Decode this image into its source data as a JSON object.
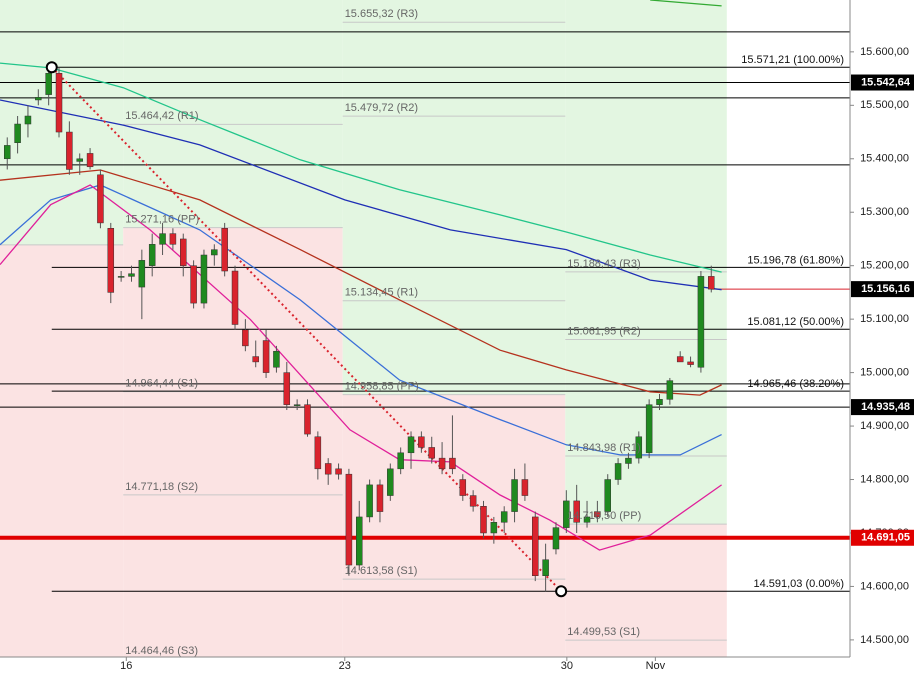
{
  "chart_data": {
    "type": "candlestick",
    "xlim": [
      -0.7,
      81.4
    ],
    "ylim": [
      14468,
      15697
    ],
    "yticks": [
      {
        "value": 14500,
        "label": "14.500,00"
      },
      {
        "value": 14600,
        "label": "14.600,00"
      },
      {
        "value": 14700,
        "label": "14.700,00"
      },
      {
        "value": 14800,
        "label": "14.800,00"
      },
      {
        "value": 14900,
        "label": "14.900,00"
      },
      {
        "value": 15000,
        "label": "15.000,00"
      },
      {
        "value": 15100,
        "label": "15.100,00"
      },
      {
        "value": 15200,
        "label": "15.200,00"
      },
      {
        "value": 15300,
        "label": "15.300,00"
      },
      {
        "value": 15400,
        "label": "15.400,00"
      },
      {
        "value": 15500,
        "label": "15.500,00"
      },
      {
        "value": 15600,
        "label": "15.600,00"
      }
    ],
    "xticks": [
      {
        "value": 11.5,
        "label": "16"
      },
      {
        "value": 32.6,
        "label": "23"
      },
      {
        "value": 54.05,
        "label": "30"
      },
      {
        "value": 62.6,
        "label": "Nov"
      }
    ],
    "up_color": "#1f8a1f",
    "down_color": "#d9232d",
    "open": [
      15400,
      15430,
      15465,
      15510,
      15520,
      15560,
      15450,
      15395,
      15410,
      15370,
      15270,
      15180,
      15180,
      15160,
      15200,
      15240,
      15260,
      15250,
      15200,
      15130,
      15220,
      15270,
      15190,
      15080,
      15030,
      15060,
      15010,
      15000,
      14940,
      14940,
      14880,
      14830,
      14820,
      14810,
      14640,
      14730,
      14790,
      14770,
      14820,
      14850,
      14880,
      14860,
      14840,
      14840,
      14800,
      14770,
      14750,
      14700,
      14720,
      14740,
      14800,
      14730,
      14620,
      14670,
      14710,
      14760,
      14720,
      14740,
      14740,
      14800,
      14830,
      14840,
      14850,
      14940,
      14950,
      15030,
      15020,
      15010,
      15180
    ],
    "high": [
      15440,
      15480,
      15500,
      15530,
      15580,
      15571,
      15470,
      15410,
      15420,
      15380,
      15280,
      15190,
      15200,
      15230,
      15260,
      15280,
      15270,
      15260,
      15210,
      15230,
      15240,
      15280,
      15200,
      15100,
      15060,
      15080,
      15050,
      15020,
      14950,
      14950,
      14890,
      14840,
      14830,
      14820,
      14760,
      14800,
      14800,
      14830,
      14860,
      14890,
      14890,
      14880,
      14870,
      14920,
      14810,
      14780,
      14760,
      14730,
      14750,
      14820,
      14830,
      14740,
      14680,
      14720,
      14780,
      14790,
      14760,
      14760,
      14810,
      14840,
      14850,
      14890,
      14950,
      14960,
      14990,
      15040,
      15030,
      15190,
      15200
    ],
    "low": [
      15380,
      15410,
      15440,
      15500,
      15500,
      15440,
      15370,
      15370,
      15380,
      15270,
      15130,
      15170,
      15170,
      15100,
      15180,
      15220,
      15230,
      15180,
      15120,
      15120,
      15200,
      15180,
      15080,
      15040,
      15010,
      14990,
      15000,
      14930,
      14930,
      14880,
      14800,
      14790,
      14800,
      14620,
      14630,
      14720,
      14720,
      14760,
      14810,
      14820,
      14850,
      14830,
      14810,
      14810,
      14760,
      14740,
      14690,
      14680,
      14700,
      14720,
      14760,
      14610,
      14591,
      14660,
      14700,
      14700,
      14710,
      14720,
      14730,
      14790,
      14820,
      14830,
      14840,
      14930,
      14940,
      15020,
      15010,
      15000,
      15150
    ],
    "close": [
      15425,
      15465,
      15480,
      15515,
      15560,
      15450,
      15380,
      15400,
      15385,
      15280,
      15150,
      15180,
      15185,
      15210,
      15240,
      15260,
      15240,
      15200,
      15130,
      15220,
      15230,
      15190,
      15090,
      15050,
      15020,
      15000,
      15040,
      14940,
      14940,
      14885,
      14820,
      14810,
      14810,
      14640,
      14730,
      14790,
      14740,
      14820,
      14850,
      14880,
      14860,
      14840,
      14820,
      14820,
      14770,
      14750,
      14700,
      14720,
      14740,
      14800,
      14770,
      14620,
      14650,
      14710,
      14760,
      14720,
      14730,
      14730,
      14800,
      14830,
      14840,
      14880,
      14940,
      14950,
      14985,
      15020,
      15015,
      15180,
      15156.16
    ],
    "lines": [
      {
        "color": "#22c58a",
        "x": [
          -0.7,
          4.2,
          11.2,
          18.6,
          28.3,
          37.9,
          47.6,
          54,
          62.1,
          69
        ],
        "values": [
          15579,
          15570,
          15533,
          15473,
          15398,
          15342,
          15295,
          15263,
          15220,
          15188
        ]
      },
      {
        "color": "#1f2fb5",
        "x": [
          -0.7,
          11.2,
          18.6,
          32.6,
          42.8,
          54,
          62.1,
          69
        ],
        "values": [
          15510,
          15463,
          15426,
          15323,
          15267,
          15230,
          15173,
          15155
        ]
      },
      {
        "color": "#b5321e",
        "x": [
          -0.7,
          9,
          18.6,
          28.3,
          37.9,
          47.6,
          54,
          62.1,
          66.9,
          69
        ],
        "values": [
          15360,
          15379,
          15323,
          15230,
          15136,
          15042,
          15005,
          14964,
          14958,
          14977
        ]
      },
      {
        "color": "#3a6fd8",
        "x": [
          -0.7,
          4.2,
          9,
          18.6,
          28.3,
          37.9,
          47.6,
          54,
          59.2,
          65,
          69
        ],
        "values": [
          15239,
          15323,
          15351,
          15267,
          15136,
          14986,
          14912,
          14865,
          14846,
          14846,
          14884
        ]
      },
      {
        "color": "#e0209a",
        "x": [
          -0.7,
          4.2,
          8,
          13.8,
          23.5,
          33.1,
          37.9,
          42.8,
          47.6,
          52.4,
          57.2,
          62.1,
          69
        ],
        "values": [
          15202,
          15314,
          15351,
          15267,
          15099,
          14893,
          14837,
          14833,
          14771,
          14724,
          14668,
          14696,
          14790
        ]
      },
      {
        "color": "#33aa33",
        "x": [
          62.1,
          69
        ],
        "values": [
          15697,
          15686
        ]
      }
    ],
    "weeks": [
      {
        "start": -0.7,
        "end": 11.2,
        "pp": {
          "value": 15239
        },
        "others": []
      },
      {
        "start": 11.2,
        "end": 32.4,
        "pp": {
          "value": 15271.16,
          "label": "15.271,16 (PP)"
        },
        "others": [
          {
            "value": 15464.42,
            "label": "15.464,42 (R1)"
          },
          {
            "value": 14964.44,
            "label": "14.964,44 (S1)"
          },
          {
            "value": 14771.18,
            "label": "14.771,18 (S2)"
          },
          {
            "value": 14464.46,
            "label": "14.464,46 (S3)"
          }
        ]
      },
      {
        "start": 32.4,
        "end": 53.9,
        "pp": {
          "value": 14958.85,
          "label": "14.958,85 (PP)"
        },
        "others": [
          {
            "value": 15655.32,
            "label": "15.655,32 (R3)"
          },
          {
            "value": 15479.72,
            "label": "15.479,72 (R2)"
          },
          {
            "value": 15134.45,
            "label": "15.134,45 (R1)"
          },
          {
            "value": 14613.58,
            "label": "14.613,58 (S1)"
          }
        ]
      },
      {
        "start": 53.9,
        "end": 69.5,
        "pp": {
          "value": 14716.5,
          "label": "14.716,50 (PP)"
        },
        "others": [
          {
            "value": 15188.43,
            "label": "15.188,43 (R3)"
          },
          {
            "value": 15061.95,
            "label": "15.061,95 (R2)"
          },
          {
            "value": 14843.98,
            "label": "14.843,98 (R1)"
          },
          {
            "value": 14499.53,
            "label": "14.499,53 (S1)"
          }
        ]
      }
    ],
    "fib_anchor_x": [
      4.3,
      53.5
    ],
    "fib_levels": [
      {
        "value": 15571.21,
        "label": "15.571,21 (100.00%)"
      },
      {
        "value": 15196.78,
        "label": "15.196,78 (61.80%)"
      },
      {
        "value": 15081.12,
        "label": "15.081,12 (50.00%)"
      },
      {
        "value": 14965.46,
        "label": "14.965,46 (38.20%)"
      },
      {
        "value": 14591.03,
        "label": "14.591,03 (0.00%)"
      }
    ],
    "levels": [
      15637.4,
      15513.9,
      15388.6,
      14978.9
    ],
    "price_tags": [
      {
        "value": 15542.64,
        "label": "15.542,64",
        "color": "#000000",
        "line": "full",
        "line_width": 1
      },
      {
        "value": 15156.16,
        "label": "15.156,16",
        "color": "#000000",
        "line": "last",
        "line_width": 1
      },
      {
        "value": 14935.48,
        "label": "14.935,48",
        "color": "#000000",
        "line": "full",
        "line_width": 1
      },
      {
        "value": 14691.05,
        "label": "14.691,05",
        "color": "#e00000",
        "line": "full",
        "line_width": 4
      }
    ]
  }
}
